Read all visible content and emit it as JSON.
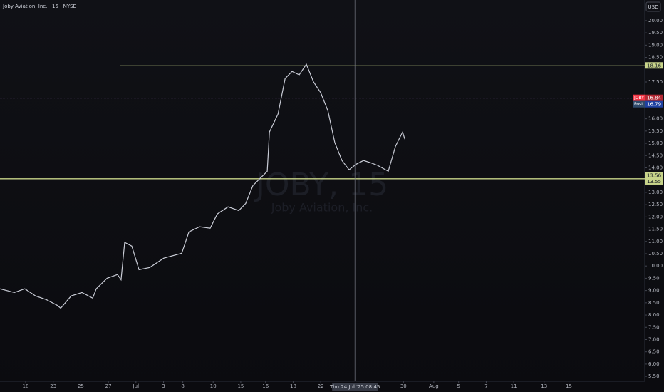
{
  "chart_data": {
    "type": "line",
    "title": "Joby Aviation, Inc. · 15 · NYSE",
    "currency": "USD",
    "watermark_symbol": "JOBY, 15",
    "watermark_name": "Joby Aviation, Inc.",
    "color": "#c9ccd6",
    "x": [
      -0.93,
      -0.41,
      -0.03,
      0.36,
      0.75,
      1.14,
      1.27,
      1.65,
      2.04,
      2.43,
      2.56,
      2.95,
      3.33,
      3.46,
      3.59,
      3.85,
      4.11,
      4.5,
      5.01,
      5.66,
      5.92,
      6.31,
      6.69,
      6.95,
      7.34,
      7.73,
      7.98,
      8.24,
      8.76,
      8.84,
      9.15,
      9.41,
      9.66,
      9.92,
      10.18,
      10.44,
      10.7,
      10.96,
      11.21,
      11.47,
      11.73,
      11.99,
      12.25,
      12.51,
      12.76,
      13.15,
      13.41,
      13.67,
      13.75
    ],
    "values": [
      9.07,
      8.92,
      9.07,
      8.78,
      8.63,
      8.4,
      8.28,
      8.78,
      8.92,
      8.69,
      9.07,
      9.5,
      9.65,
      9.44,
      10.96,
      10.81,
      9.85,
      9.94,
      10.32,
      10.52,
      11.39,
      11.6,
      11.54,
      12.12,
      12.41,
      12.26,
      12.55,
      13.28,
      13.86,
      15.46,
      16.19,
      17.64,
      17.93,
      17.79,
      18.22,
      17.5,
      17.06,
      16.33,
      15.03,
      14.3,
      13.92,
      14.15,
      14.3,
      14.21,
      14.1,
      13.86,
      14.88,
      15.46,
      15.17
    ],
    "xlim": [
      -0.93,
      22.45
    ],
    "ylim": [
      5.3,
      20.84
    ],
    "xticks": [
      {
        "value": 0,
        "label": "18"
      },
      {
        "value": 1.0,
        "label": "23"
      },
      {
        "value": 2.0,
        "label": "25"
      },
      {
        "value": 3.0,
        "label": "27"
      },
      {
        "value": 4.0,
        "label": "Jul"
      },
      {
        "value": 5.0,
        "label": "3"
      },
      {
        "value": 5.7,
        "label": "8"
      },
      {
        "value": 6.8,
        "label": "10"
      },
      {
        "value": 7.8,
        "label": "15"
      },
      {
        "value": 8.7,
        "label": "16"
      },
      {
        "value": 9.7,
        "label": "18"
      },
      {
        "value": 10.7,
        "label": "22"
      },
      {
        "value": 13.7,
        "label": "30"
      },
      {
        "value": 14.8,
        "label": "Aug"
      },
      {
        "value": 15.7,
        "label": "5"
      },
      {
        "value": 16.7,
        "label": "7"
      },
      {
        "value": 17.7,
        "label": "11"
      },
      {
        "value": 18.8,
        "label": "13"
      },
      {
        "value": 19.7,
        "label": "15"
      }
    ],
    "yticks": [
      {
        "value": 5.5,
        "label": "5.50"
      },
      {
        "value": 6,
        "label": "6.00"
      },
      {
        "value": 6.5,
        "label": "6.50"
      },
      {
        "value": 7,
        "label": "7.00"
      },
      {
        "value": 7.5,
        "label": "7.50"
      },
      {
        "value": 8,
        "label": "8.00"
      },
      {
        "value": 8.5,
        "label": "8.50"
      },
      {
        "value": 9,
        "label": "9.00"
      },
      {
        "value": 9.5,
        "label": "9.50"
      },
      {
        "value": 10,
        "label": "10.00"
      },
      {
        "value": 10.5,
        "label": "10.50"
      },
      {
        "value": 11,
        "label": "11.00"
      },
      {
        "value": 11.5,
        "label": "11.50"
      },
      {
        "value": 12,
        "label": "12.00"
      },
      {
        "value": 12.5,
        "label": "12.50"
      },
      {
        "value": 13,
        "label": "13.00"
      },
      {
        "value": 14,
        "label": "14.00"
      },
      {
        "value": 14.5,
        "label": "14.50"
      },
      {
        "value": 15,
        "label": "15.00"
      },
      {
        "value": 15.5,
        "label": "15.50"
      },
      {
        "value": 16,
        "label": "16.00"
      },
      {
        "value": 17.5,
        "label": "17.50"
      },
      {
        "value": 18.5,
        "label": "18.50"
      },
      {
        "value": 19,
        "label": "19.00"
      },
      {
        "value": 19.5,
        "label": "19.50"
      },
      {
        "value": 20,
        "label": "20.00"
      }
    ],
    "hlines": [
      18.16,
      13.56,
      13.55
    ],
    "hline_color": "#c8d48a",
    "last_price": {
      "label": "JOBY",
      "value": 16.84
    },
    "post_price": {
      "label": "Post",
      "value": 16.79
    },
    "crosshair": {
      "x": 11.94,
      "label": "Thu 24 Jul '25  08:45"
    }
  }
}
